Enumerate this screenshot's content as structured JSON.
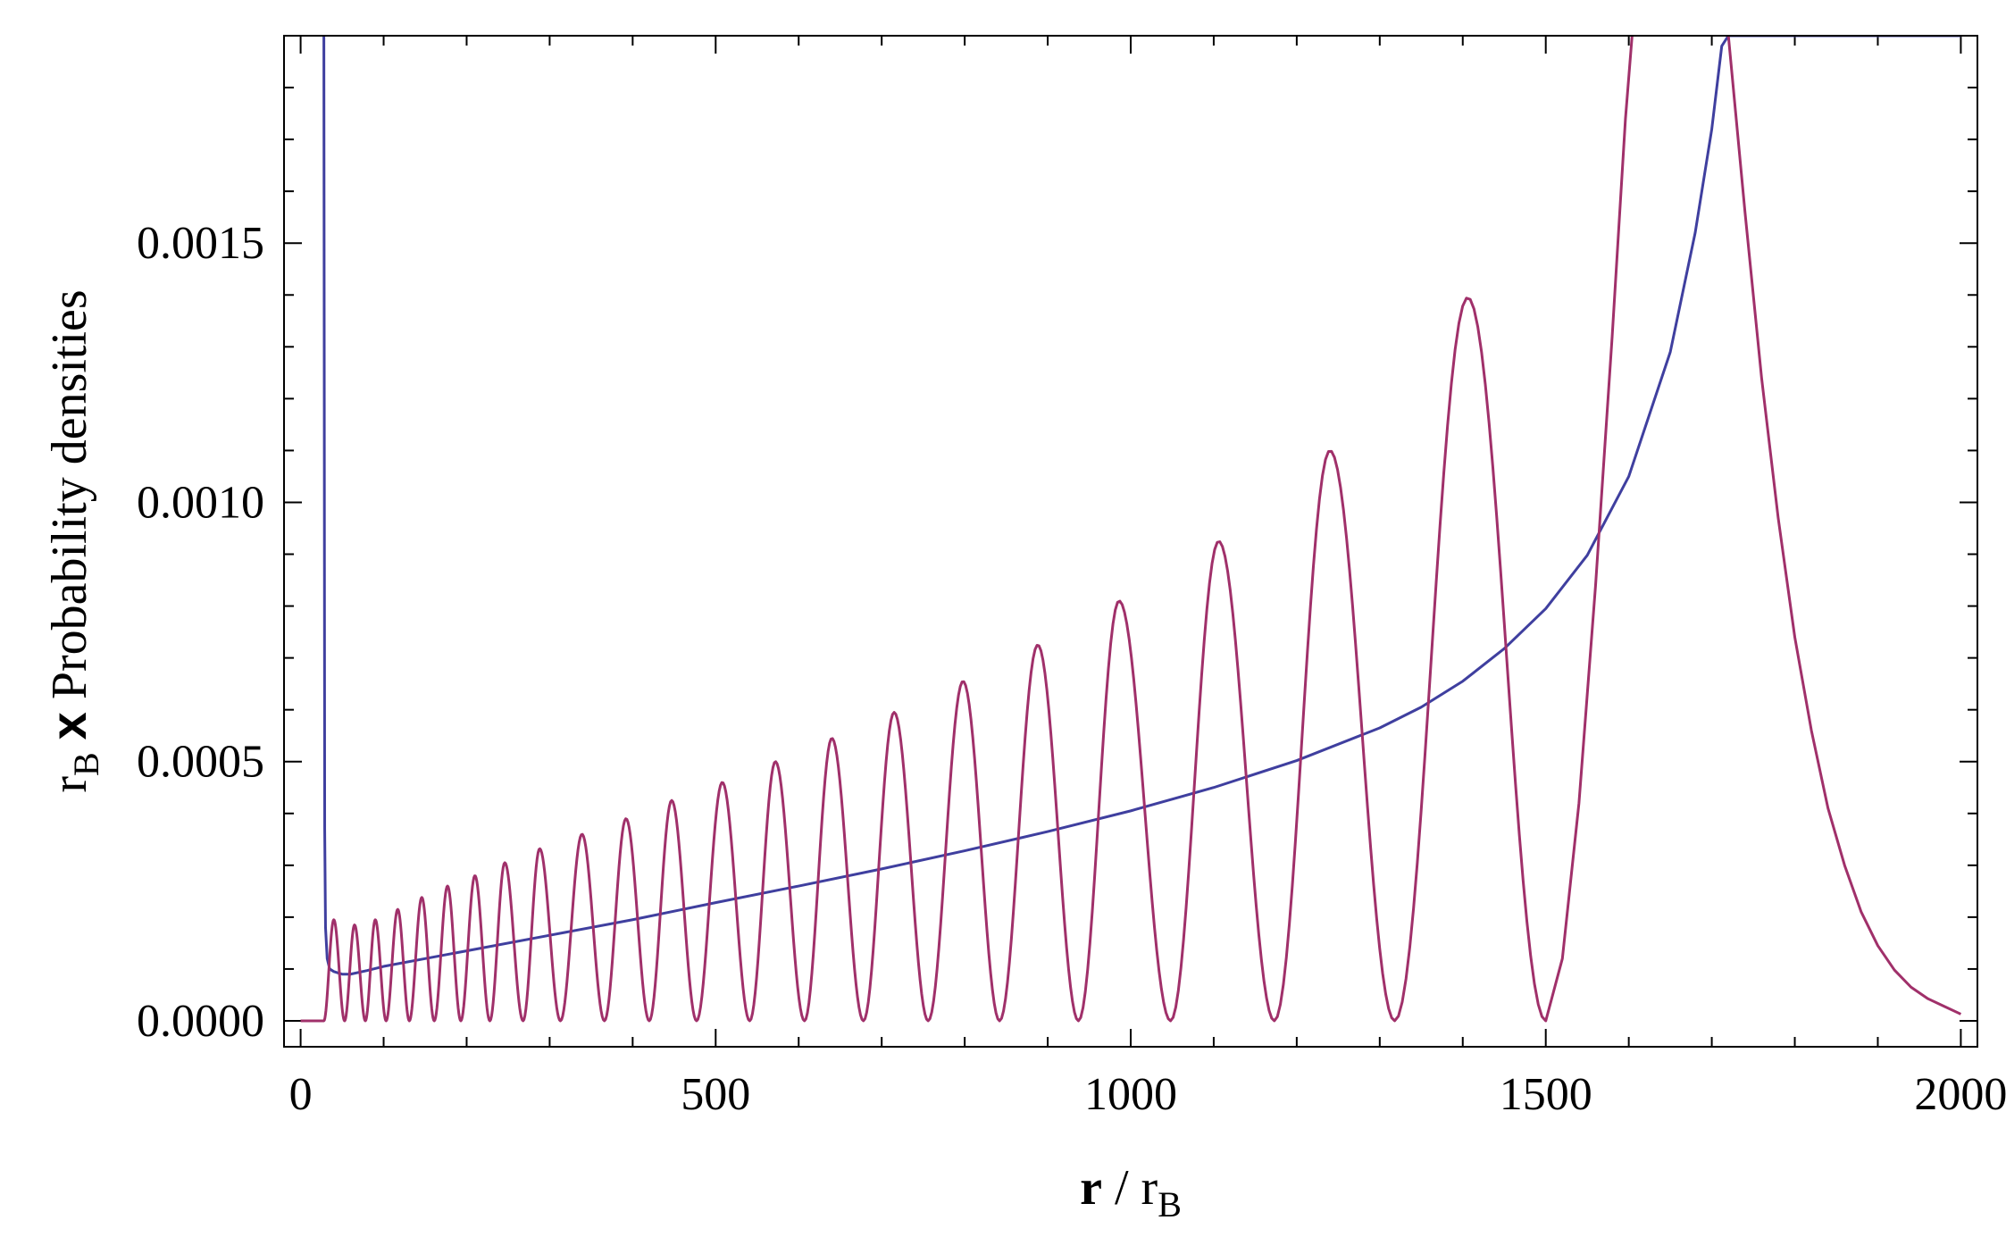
{
  "chart_data": {
    "type": "line",
    "xlabel": {
      "symbol": "r",
      "sep": " / ",
      "base": "r",
      "sub": "B"
    },
    "ylabel": {
      "base": "r",
      "sub": "B",
      "times": "x",
      "text": "Probability densities"
    },
    "xlim": [
      -20,
      2020
    ],
    "ylim": [
      -5e-05,
      0.0019
    ],
    "x_ticks": [
      0,
      500,
      1000,
      1500,
      2000
    ],
    "x_tick_labels": [
      "0",
      "500",
      "1000",
      "1500",
      "2000"
    ],
    "y_ticks": [
      0.0,
      0.0005,
      0.001,
      0.0015
    ],
    "y_tick_labels": [
      "0.0000",
      "0.0005",
      "0.0010",
      "0.0015"
    ],
    "x_minor_step": 100,
    "y_minor_step": 0.0001,
    "grid": false,
    "legend": "none",
    "series": [
      {
        "color": "#3f3f9f",
        "x": [
          28,
          28.5,
          29,
          30,
          32,
          35,
          40,
          50,
          60,
          80,
          100,
          150,
          200,
          300,
          400,
          500,
          600,
          700,
          800,
          900,
          1000,
          1100,
          1200,
          1300,
          1350,
          1400,
          1450,
          1500,
          1550,
          1600,
          1650,
          1680,
          1700,
          1712,
          1720,
          1730,
          1750,
          1800,
          1850,
          1900,
          1950,
          2000
        ],
        "y": [
          0.0019,
          0.0012,
          0.00037,
          0.00018,
          0.00012,
          0.0001,
          9.5e-05,
          9e-05,
          9e-05,
          9.7e-05,
          0.000105,
          0.00012,
          0.000135,
          0.000165,
          0.000195,
          0.000228,
          0.00026,
          0.000293,
          0.000328,
          0.000365,
          0.000405,
          0.00045,
          0.000502,
          0.000565,
          0.000605,
          0.000655,
          0.000718,
          0.000795,
          0.000898,
          0.00105,
          0.00129,
          0.00152,
          0.00172,
          0.00188,
          0.0019,
          0.0019,
          0.0019,
          0.0019,
          0.0019,
          0.0019,
          0.0019,
          0.0019
        ]
      },
      {
        "color": "#a0306a",
        "peak_x": [
          40,
          65,
          90,
          117,
          146,
          177,
          210,
          246,
          288,
          339,
          392,
          447,
          508,
          572,
          640,
          715,
          798,
          888,
          986,
          1106,
          1240,
          1406
        ],
        "peak_y": [
          0.000195,
          0.000185,
          0.000195,
          0.000215,
          0.000238,
          0.00026,
          0.00028,
          0.000305,
          0.000332,
          0.00036,
          0.00039,
          0.000425,
          0.00046,
          0.0005,
          0.000545,
          0.000595,
          0.000655,
          0.000725,
          0.00081,
          0.000925,
          0.0011,
          0.001395
        ],
        "zero_x": [
          0,
          28,
          53,
          78,
          103,
          131,
          161,
          193,
          228,
          268,
          313,
          366,
          420,
          477,
          541,
          607,
          678,
          756,
          842,
          937,
          1048,
          1173,
          1318,
          1500
        ],
        "rise": {
          "x": [
            1500,
            1520,
            1540,
            1560,
            1580,
            1596,
            1604
          ],
          "y": [
            0.0,
            0.00012,
            0.00042,
            0.00084,
            0.00132,
            0.00174,
            0.0019
          ]
        },
        "decay": {
          "x": [
            1720,
            1740,
            1760,
            1780,
            1800,
            1820,
            1840,
            1860,
            1880,
            1900,
            1920,
            1940,
            1960,
            1980,
            2000
          ],
          "y": [
            0.0019,
            0.00156,
            0.00124,
            0.00097,
            0.00074,
            0.00056,
            0.00041,
            0.0003,
            0.00021,
            0.000145,
            9.8e-05,
            6.5e-05,
            4.3e-05,
            2.8e-05,
            1.3e-05
          ]
        }
      }
    ]
  }
}
